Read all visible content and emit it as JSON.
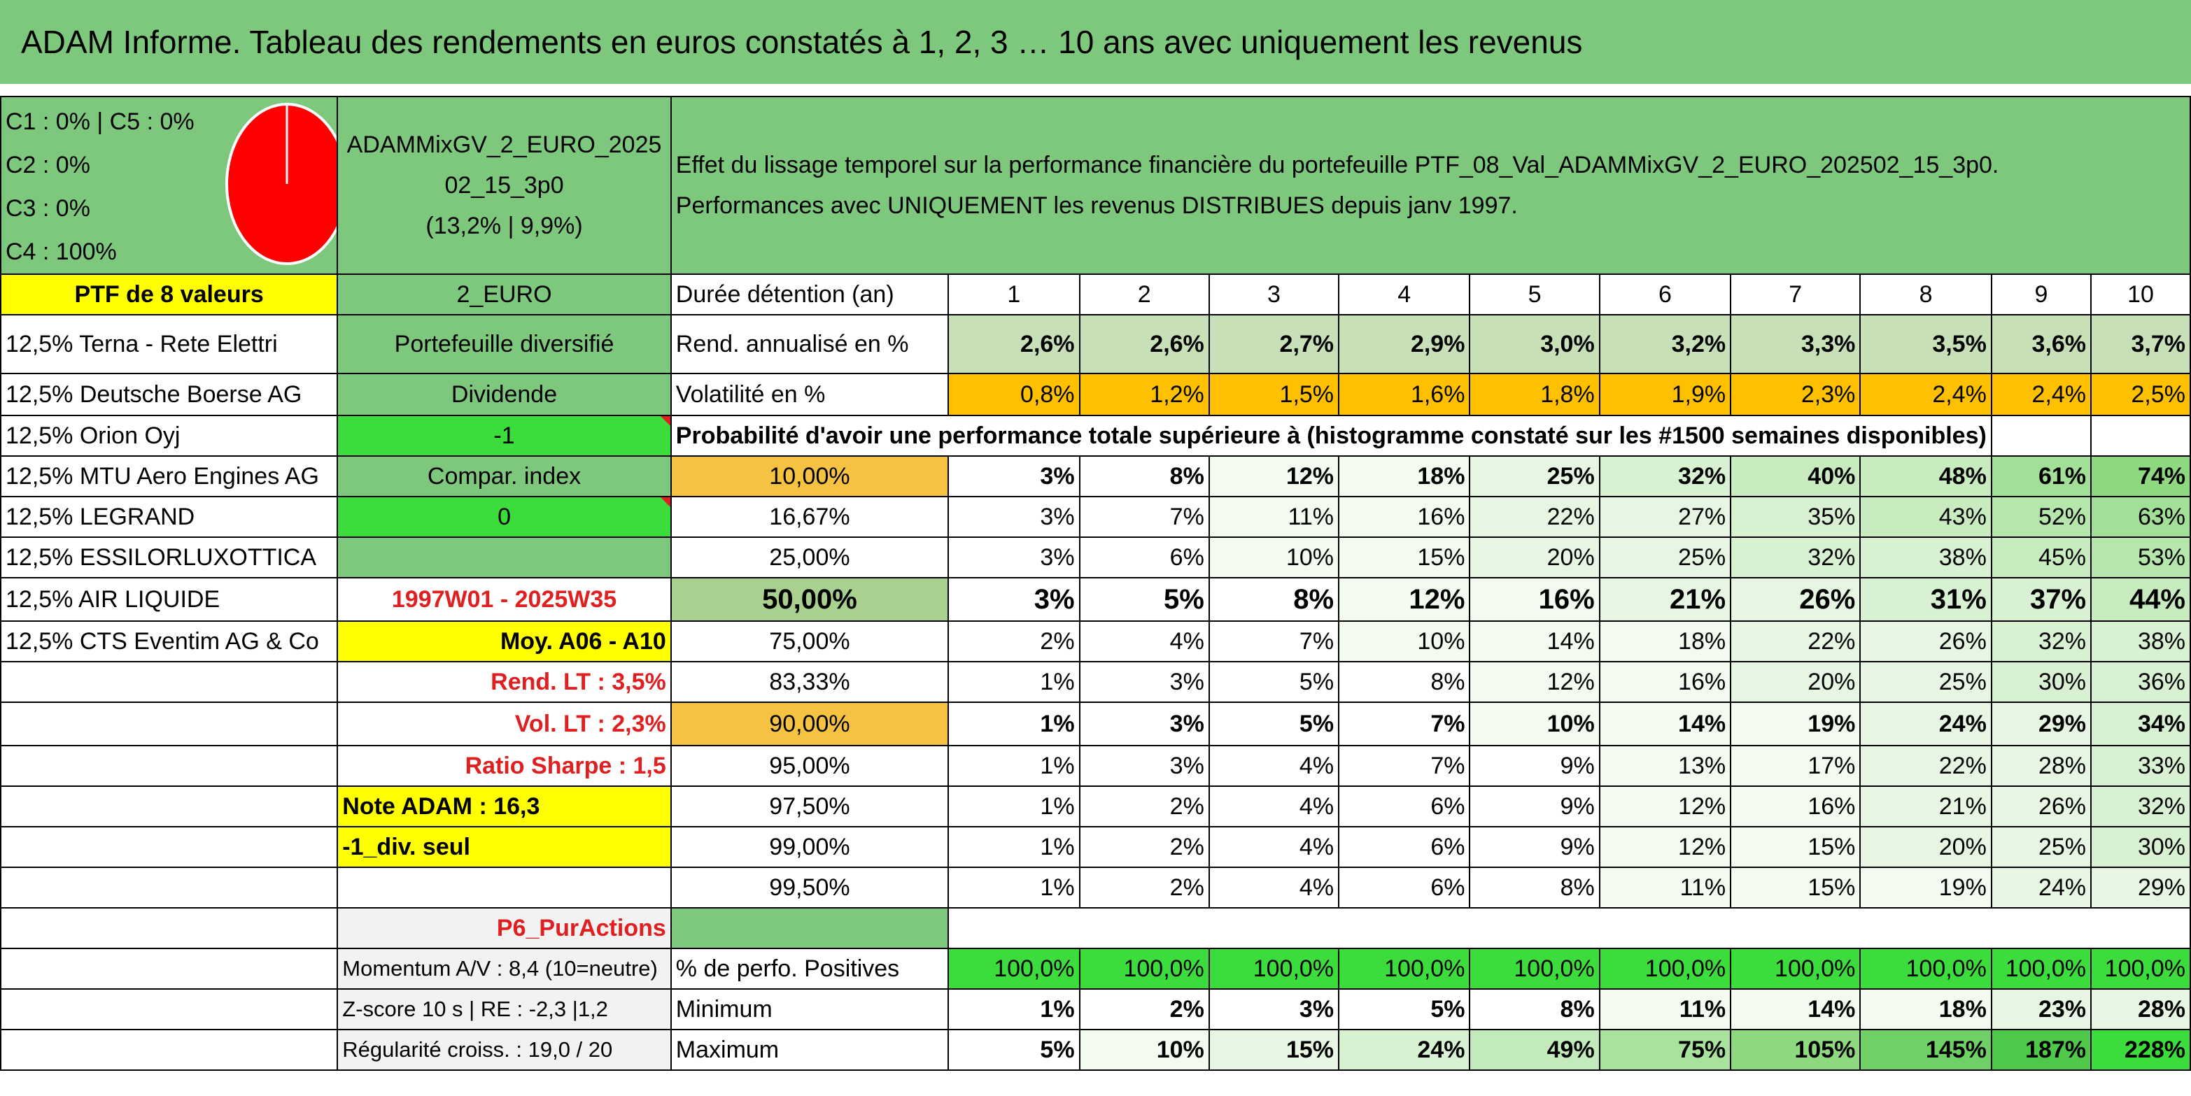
{
  "title": "ADAM Informe. Tableau des rendements en euros constatés à 1, 2, 3 … 10 ans avec uniquement les revenus",
  "legend": [
    "C1 : 0% | C5 : 0%",
    "C2 : 0%",
    "C3 : 0%",
    "C4 : 100%"
  ],
  "pie": {
    "color": "#ff0000",
    "value_percent": 100
  },
  "portfolio": {
    "name_line1": "ADAMMixGV_2_EURO_2025",
    "name_line2": "02_15_3p0",
    "name_line3": "(13,2% | 9,9%)",
    "description_line1": "Effet du lissage temporel sur la performance financière du portefeuille PTF_08_Val_ADAMMixGV_2_EURO_202502_15_3p0.",
    "description_line2": "Performances avec UNIQUEMENT les revenus DISTRIBUES depuis janv 1997."
  },
  "left": {
    "ptf_label": "PTF de 8 valeurs",
    "holdings": [
      "12,5% Terna - Rete Elettri",
      "12,5% Deutsche Boerse AG",
      "12,5% Orion Oyj",
      "12,5% MTU Aero Engines AG",
      "12,5% LEGRAND",
      "12,5% ESSILORLUXOTTICA",
      "12,5% AIR LIQUIDE",
      "12,5% CTS Eventim AG & Co"
    ]
  },
  "mid": {
    "currency": "2_EURO",
    "type": "Portefeuille diversifié",
    "dividend_label": "Dividende",
    "dividend_value": "-1",
    "compar": "Compar. index",
    "compar_value": "0",
    "period": "1997W01 - 2025W35",
    "moy": "Moy. A06 - A10",
    "rend_lt": "Rend. LT : 3,5%",
    "vol_lt": "Vol. LT : 2,3%",
    "sharpe": "Ratio Sharpe : 1,5",
    "note": "Note ADAM : 16,3",
    "div_seul": "-1_div. seul",
    "p6": "P6_PurActions",
    "momentum": "Momentum A/V : 8,4 (10=neutre)",
    "zscore": "Z-score 10 s | RE : -2,3 |1,2",
    "regularite": "Régularité croiss. : 19,0 / 20"
  },
  "table": {
    "duration_label": "Durée détention (an)",
    "years": [
      "1",
      "2",
      "3",
      "4",
      "5",
      "6",
      "7",
      "8",
      "9",
      "10"
    ],
    "rend_label": "Rend. annualisé en %",
    "rend": [
      "2,6%",
      "2,6%",
      "2,7%",
      "2,9%",
      "3,0%",
      "3,2%",
      "3,3%",
      "3,5%",
      "3,6%",
      "3,7%"
    ],
    "vol_label": "Volatilité en %",
    "vol": [
      "0,8%",
      "1,2%",
      "1,5%",
      "1,6%",
      "1,8%",
      "1,9%",
      "2,3%",
      "2,4%",
      "2,4%",
      "2,5%"
    ],
    "prob_title": "Probabilité d'avoir une performance totale supérieure à (histogramme constaté sur les #1500 semaines disponibles)",
    "prob_rows": [
      {
        "p": "10,00%",
        "v": [
          "3%",
          "8%",
          "12%",
          "18%",
          "25%",
          "32%",
          "40%",
          "48%",
          "61%",
          "74%"
        ]
      },
      {
        "p": "16,67%",
        "v": [
          "3%",
          "7%",
          "11%",
          "16%",
          "22%",
          "27%",
          "35%",
          "43%",
          "52%",
          "63%"
        ]
      },
      {
        "p": "25,00%",
        "v": [
          "3%",
          "6%",
          "10%",
          "15%",
          "20%",
          "25%",
          "32%",
          "38%",
          "45%",
          "53%"
        ]
      },
      {
        "p": "50,00%",
        "v": [
          "3%",
          "5%",
          "8%",
          "12%",
          "16%",
          "21%",
          "26%",
          "31%",
          "37%",
          "44%"
        ]
      },
      {
        "p": "75,00%",
        "v": [
          "2%",
          "4%",
          "7%",
          "10%",
          "14%",
          "18%",
          "22%",
          "26%",
          "32%",
          "38%"
        ]
      },
      {
        "p": "83,33%",
        "v": [
          "1%",
          "3%",
          "5%",
          "8%",
          "12%",
          "16%",
          "20%",
          "25%",
          "30%",
          "36%"
        ]
      },
      {
        "p": "90,00%",
        "v": [
          "1%",
          "3%",
          "5%",
          "7%",
          "10%",
          "14%",
          "19%",
          "24%",
          "29%",
          "34%"
        ]
      },
      {
        "p": "95,00%",
        "v": [
          "1%",
          "3%",
          "4%",
          "7%",
          "9%",
          "13%",
          "17%",
          "22%",
          "28%",
          "33%"
        ]
      },
      {
        "p": "97,50%",
        "v": [
          "1%",
          "2%",
          "4%",
          "6%",
          "9%",
          "12%",
          "16%",
          "21%",
          "26%",
          "32%"
        ]
      },
      {
        "p": "99,00%",
        "v": [
          "1%",
          "2%",
          "4%",
          "6%",
          "9%",
          "12%",
          "15%",
          "20%",
          "25%",
          "30%"
        ]
      },
      {
        "p": "99,50%",
        "v": [
          "1%",
          "2%",
          "4%",
          "6%",
          "8%",
          "11%",
          "15%",
          "19%",
          "24%",
          "29%"
        ]
      }
    ],
    "pos_label": "% de perfo. Positives",
    "pos": [
      "100,0%",
      "100,0%",
      "100,0%",
      "100,0%",
      "100,0%",
      "100,0%",
      "100,0%",
      "100,0%",
      "100,0%",
      "100,0%"
    ],
    "min_label": "Minimum",
    "min": [
      "1%",
      "2%",
      "3%",
      "5%",
      "8%",
      "11%",
      "14%",
      "18%",
      "23%",
      "28%"
    ],
    "max_label": "Maximum",
    "max": [
      "5%",
      "10%",
      "15%",
      "24%",
      "49%",
      "75%",
      "105%",
      "145%",
      "187%",
      "228%"
    ]
  }
}
